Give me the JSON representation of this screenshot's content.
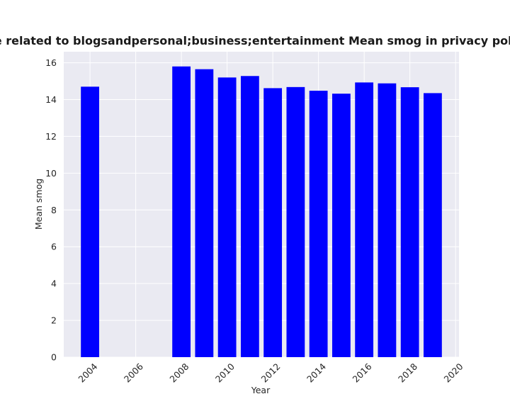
{
  "chart_data": {
    "type": "bar",
    "title": "ategories are related to blogsandpersonal;business;entertainment Mean smog in privacy policie",
    "xlabel": "Year",
    "ylabel": "Mean smog",
    "x": [
      2004,
      2008,
      2009,
      2010,
      2011,
      2012,
      2013,
      2014,
      2015,
      2016,
      2017,
      2018,
      2019
    ],
    "values": [
      14.7,
      15.8,
      15.65,
      15.2,
      15.28,
      14.62,
      14.68,
      14.48,
      14.32,
      14.93,
      14.88,
      14.67,
      14.35
    ],
    "xlim": [
      2002.85,
      2020.15
    ],
    "ylim": [
      0,
      16.6
    ],
    "xticks": [
      2004,
      2006,
      2008,
      2010,
      2012,
      2014,
      2016,
      2018,
      2020
    ],
    "yticks": [
      0,
      2,
      4,
      6,
      8,
      10,
      12,
      14,
      16
    ],
    "bar_color": "#0000ff",
    "plot_background": "#eaeaf2",
    "grid": true
  }
}
